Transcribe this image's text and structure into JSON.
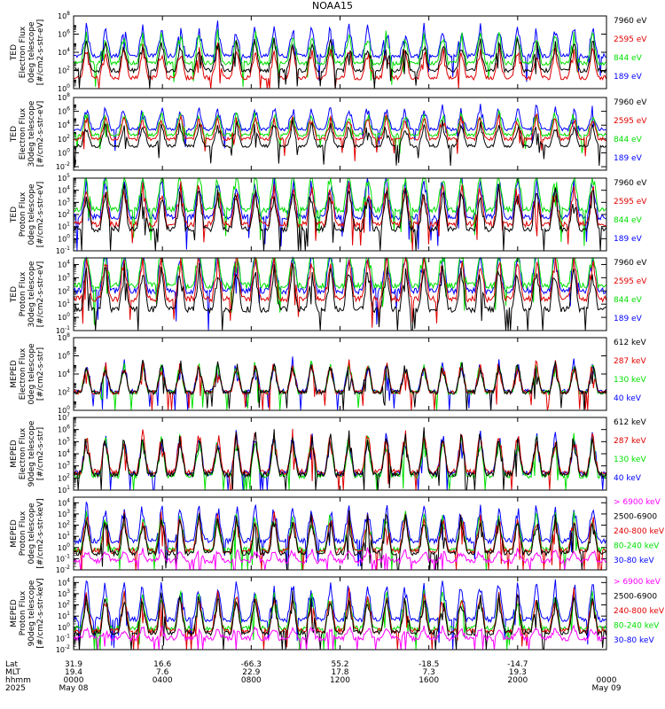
{
  "title": "NOAA15",
  "colors": {
    "c1": "#000000",
    "c2": "#e00000",
    "c3": "#00e000",
    "c4": "#0000ff",
    "c5": "#ff00ff"
  },
  "panels": [
    {
      "ylabel": [
        "TED",
        "Electron Flux",
        "0deg telescope",
        "[#/cm2-s-str-eV]"
      ],
      "ytick_exp": [
        0,
        2,
        4,
        6,
        8
      ],
      "ylim_exp": [
        0,
        8
      ],
      "legend": [
        [
          "7960 eV",
          "c1"
        ],
        [
          "2595 eV",
          "c2"
        ],
        [
          "844 eV",
          "c3"
        ],
        [
          "189 eV",
          "c4"
        ]
      ],
      "levels": [
        2.0,
        1.2,
        2.8,
        3.6
      ]
    },
    {
      "ylabel": [
        "TED",
        "Electron Flux",
        "30deg telescope",
        "[#/cm2-s-str-eV]"
      ],
      "ytick_exp": [
        -2,
        0,
        2,
        4,
        6,
        8
      ],
      "ylim_exp": [
        -2.5,
        8
      ],
      "legend": [
        [
          "7960 eV",
          "c1"
        ],
        [
          "2595 eV",
          "c2"
        ],
        [
          "844 eV",
          "c3"
        ],
        [
          "189 eV",
          "c4"
        ]
      ],
      "levels": [
        1.0,
        2.0,
        2.6,
        3.4
      ]
    },
    {
      "ylabel": [
        "TED",
        "Proton Flux",
        "0deg telescope",
        "[#/cm2-s-str-eV]"
      ],
      "ytick_exp": [
        -1,
        0,
        1,
        2,
        3,
        4,
        5
      ],
      "ylim_exp": [
        -1,
        5
      ],
      "legend": [
        [
          "7960 eV",
          "c1"
        ],
        [
          "2595 eV",
          "c2"
        ],
        [
          "844 eV",
          "c3"
        ],
        [
          "189 eV",
          "c4"
        ]
      ],
      "levels": [
        0.8,
        1.2,
        2.4,
        1.8
      ]
    },
    {
      "ylabel": [
        "TED",
        "Proton Flux",
        "30deg telescope",
        "[#/cm2-s-str-eV]"
      ],
      "ytick_exp": [
        -1,
        0,
        1,
        2,
        3,
        4
      ],
      "ylim_exp": [
        -1,
        4.5
      ],
      "legend": [
        [
          "7960 eV",
          "c1"
        ],
        [
          "2595 eV",
          "c2"
        ],
        [
          "844 eV",
          "c3"
        ],
        [
          "189 eV",
          "c4"
        ]
      ],
      "levels": [
        0.6,
        1.4,
        2.4,
        2.0
      ]
    },
    {
      "ylabel": [
        "MEPED",
        "Electron Flux",
        "0deg telescope",
        "[#/cm2-s-str]"
      ],
      "ytick_exp": [
        0,
        2,
        4,
        6,
        8
      ],
      "ylim_exp": [
        0,
        8
      ],
      "legend": [
        [
          "612 keV",
          "c1"
        ],
        [
          "287 keV",
          "c2"
        ],
        [
          "130 keV",
          "c3"
        ],
        [
          "40 keV",
          "c4"
        ]
      ],
      "levels": [
        2.0,
        2.0,
        2.0,
        2.1
      ]
    },
    {
      "ylabel": [
        "MEPED",
        "Electron Flux",
        "90deg telescope",
        "[#/cm2-s-str]"
      ],
      "ytick_exp": [
        1,
        2,
        3,
        4,
        5,
        6,
        7
      ],
      "ylim_exp": [
        1,
        7
      ],
      "legend": [
        [
          "612 keV",
          "c1"
        ],
        [
          "287 keV",
          "c2"
        ],
        [
          "130 keV",
          "c3"
        ],
        [
          "40 keV",
          "c4"
        ]
      ],
      "levels": [
        2.3,
        2.5,
        2.2,
        2.4
      ]
    },
    {
      "ylabel": [
        "MEPED",
        "Proton Flux",
        "0deg telescope",
        "[#/cm2-s-str-keV]"
      ],
      "ytick_exp": [
        -2,
        -1,
        0,
        1,
        2,
        3,
        4
      ],
      "ylim_exp": [
        -2,
        4.5
      ],
      "legend": [
        [
          "> 6900 keV",
          "c5"
        ],
        [
          "2500-6900",
          "c1"
        ],
        [
          "240-800 keV",
          "c2"
        ],
        [
          "80-240 keV",
          "c3"
        ],
        [
          "30-80 keV",
          "c4"
        ]
      ],
      "levels": [
        -1.2,
        -0.5,
        -0.3,
        -0.2,
        0.6
      ]
    },
    {
      "ylabel": [
        "MEPED",
        "Proton Flux",
        "90deg telescope",
        "[#/cm2-s-str-keV]"
      ],
      "ytick_exp": [
        -2,
        -1,
        0,
        1,
        2,
        3,
        4
      ],
      "ylim_exp": [
        -2,
        4.5
      ],
      "legend": [
        [
          "> 6900 keV",
          "c5"
        ],
        [
          "2500-6900",
          "c1"
        ],
        [
          "240-800 keV",
          "c2"
        ],
        [
          "80-240 keV",
          "c3"
        ],
        [
          "30-80 keV",
          "c4"
        ]
      ],
      "levels": [
        -1.0,
        -0.5,
        -0.3,
        -0.1,
        0.7
      ]
    }
  ],
  "xaxis": {
    "row_labels": [
      "Lat",
      "MLT",
      "hhmm",
      "2025"
    ],
    "ticks": [
      {
        "lat": "31.9",
        "mlt": "19.4",
        "hhmm": "0000",
        "date": "May 08"
      },
      {
        "lat": "16.6",
        "mlt": "7.6",
        "hhmm": "0400",
        "date": ""
      },
      {
        "lat": "-66.3",
        "mlt": "22.9",
        "hhmm": "0800",
        "date": ""
      },
      {
        "lat": "55.2",
        "mlt": "17.8",
        "hhmm": "1200",
        "date": ""
      },
      {
        "lat": "-18.5",
        "mlt": "7.3",
        "hhmm": "1600",
        "date": ""
      },
      {
        "lat": "-14.7",
        "mlt": "19.3",
        "hhmm": "2000",
        "date": ""
      },
      {
        "lat": "",
        "mlt": "",
        "hhmm": "0000",
        "date": "May 09"
      }
    ]
  },
  "chart_data": {
    "type": "line",
    "title": "NOAA15",
    "y_scale": "log",
    "x_range_hours": [
      0,
      24
    ],
    "x_ticks_hhmm": [
      "0000",
      "0400",
      "0800",
      "1200",
      "1600",
      "2000",
      "0000"
    ],
    "orbit_pass_count": 28,
    "panels": [
      {
        "name": "TED Electron Flux 0deg telescope",
        "units": "[#/cm2-s-str-eV]",
        "ylim": [
          1.0,
          100000000.0
        ],
        "series": [
          {
            "name": "7960 eV",
            "baseline": 100.0,
            "peak": 1000000.0
          },
          {
            "name": "2595 eV",
            "baseline": 20.0,
            "peak": 1000000.0
          },
          {
            "name": "844 eV",
            "baseline": 600.0,
            "peak": 10000000.0
          },
          {
            "name": "189 eV",
            "baseline": 4000.0,
            "peak": 10000000.0
          }
        ]
      },
      {
        "name": "TED Electron Flux 30deg telescope",
        "units": "[#/cm2-s-str-eV]",
        "ylim": [
          0.003,
          100000000.0
        ],
        "series": [
          {
            "name": "7960 eV",
            "baseline": 10.0,
            "peak": 1000000.0
          },
          {
            "name": "2595 eV",
            "baseline": 100.0,
            "peak": 1000000.0
          },
          {
            "name": "844 eV",
            "baseline": 400.0,
            "peak": 10000000.0
          },
          {
            "name": "189 eV",
            "baseline": 2500.0,
            "peak": 10000000.0
          }
        ]
      },
      {
        "name": "TED Proton Flux 0deg telescope",
        "units": "[#/cm2-s-str-eV]",
        "ylim": [
          0.1,
          100000.0
        ],
        "series": [
          {
            "name": "7960 eV",
            "baseline": 6.0,
            "peak": 10000.0
          },
          {
            "name": "2595 eV",
            "baseline": 16.0,
            "peak": 10000.0
          },
          {
            "name": "844 eV",
            "baseline": 250.0,
            "peak": 30000.0
          },
          {
            "name": "189 eV",
            "baseline": 60.0,
            "peak": 10000.0
          }
        ]
      },
      {
        "name": "TED Proton Flux 30deg telescope",
        "units": "[#/cm2-s-str-eV]",
        "ylim": [
          0.1,
          30000.0
        ],
        "series": [
          {
            "name": "7960 eV",
            "baseline": 4.0,
            "peak": 10000.0
          },
          {
            "name": "2595 eV",
            "baseline": 25.0,
            "peak": 10000.0
          },
          {
            "name": "844 eV",
            "baseline": 250.0,
            "peak": 10000.0
          },
          {
            "name": "189 eV",
            "baseline": 100.0,
            "peak": 10000.0
          }
        ]
      },
      {
        "name": "MEPED Electron Flux 0deg telescope",
        "units": "[#/cm2-s-str]",
        "ylim": [
          1.0,
          100000000.0
        ],
        "series": [
          {
            "name": "612 keV",
            "baseline": 100.0,
            "peak": 100000.0
          },
          {
            "name": "287 keV",
            "baseline": 100.0,
            "peak": 1000000.0
          },
          {
            "name": "130 keV",
            "baseline": 100.0,
            "peak": 1000000.0
          },
          {
            "name": "40 keV",
            "baseline": 130.0,
            "peak": 10000000.0
          }
        ]
      },
      {
        "name": "MEPED Electron Flux 90deg telescope",
        "units": "[#/cm2-s-str]",
        "ylim": [
          10.0,
          10000000.0
        ],
        "series": [
          {
            "name": "612 keV",
            "baseline": 200.0,
            "peak": 1000000.0
          },
          {
            "name": "287 keV",
            "baseline": 300.0,
            "peak": 1000000.0
          },
          {
            "name": "130 keV",
            "baseline": 160.0,
            "peak": 1000000.0
          },
          {
            "name": "40 keV",
            "baseline": 250.0,
            "peak": 10000000.0
          }
        ]
      },
      {
        "name": "MEPED Proton Flux 0deg telescope",
        "units": "[#/cm2-s-str-keV]",
        "ylim": [
          0.01,
          30000.0
        ],
        "series": [
          {
            "name": "> 6900 keV",
            "baseline": 0.06,
            "peak": 0.1
          },
          {
            "name": "2500-6900",
            "baseline": 0.3,
            "peak": 1.0
          },
          {
            "name": "240-800 keV",
            "baseline": 0.5,
            "peak": 100.0
          },
          {
            "name": "80-240 keV",
            "baseline": 0.6,
            "peak": 1000.0
          },
          {
            "name": "30-80 keV",
            "baseline": 4.0,
            "peak": 10000.0
          }
        ]
      },
      {
        "name": "MEPED Proton Flux 90deg telescope",
        "units": "[#/cm2-s-str-keV]",
        "ylim": [
          0.01,
          30000.0
        ],
        "series": [
          {
            "name": "> 6900 keV",
            "baseline": 0.1,
            "peak": 0.1
          },
          {
            "name": "2500-6900",
            "baseline": 0.3,
            "peak": 1.0
          },
          {
            "name": "240-800 keV",
            "baseline": 0.5,
            "peak": 100.0
          },
          {
            "name": "80-240 keV",
            "baseline": 0.8,
            "peak": 1000.0
          },
          {
            "name": "30-80 keV",
            "baseline": 5.0,
            "peak": 10000.0
          }
        ]
      }
    ]
  }
}
